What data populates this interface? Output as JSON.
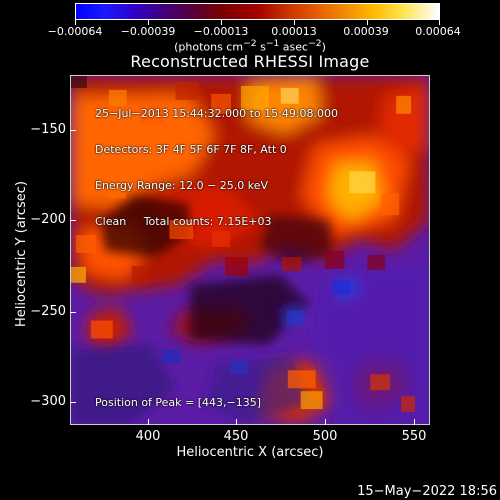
{
  "colorbar": {
    "labels": [
      "−0.00064",
      "−0.00039",
      "−0.00013",
      "0.00013",
      "0.00039",
      "0.00064"
    ],
    "units_prefix": "(photons cm",
    "units_exp1": "−2",
    "units_mid": " s",
    "units_exp2": "−1",
    "units_mid2": " asec",
    "units_exp3": "−2",
    "units_suffix": ")"
  },
  "title": "Reconstructed RHESSI Image",
  "overlay": {
    "line1": "25−Jul−2013 15:44:32.000 to 15:49:08.000",
    "line2": "Detectors: 3F 4F 5F 6F 7F 8F, Att 0",
    "line3": "Energy Range: 12.0 − 25.0 keV",
    "line4": "Clean     Total counts: 7.15E+03"
  },
  "peak_label": "Position of Peak = [443,−135]",
  "axes": {
    "x_title": "Heliocentric X (arcsec)",
    "y_title": "Heliocentric Y (arcsec)",
    "x_ticks": [
      "400",
      "450",
      "500",
      "550"
    ],
    "y_ticks": [
      "−150",
      "−200",
      "−250",
      "−300"
    ]
  },
  "footer_date": "15−May−2022 18:56",
  "chart_data": {
    "type": "heatmap",
    "title": "Reconstructed RHESSI Image",
    "xlabel": "Heliocentric X (arcsec)",
    "ylabel": "Heliocentric Y (arcsec)",
    "xlim": [
      360,
      555
    ],
    "ylim": [
      -310,
      -120
    ],
    "x_ticks": [
      400,
      450,
      500,
      550
    ],
    "y_ticks": [
      -150,
      -200,
      -250,
      -300
    ],
    "color_scale": [
      -0.00064,
      -0.00039,
      -0.00013,
      0.00013,
      0.00039,
      0.00064
    ],
    "peak_position": [
      443,
      -135
    ],
    "total_counts": "7.15E+03"
  }
}
